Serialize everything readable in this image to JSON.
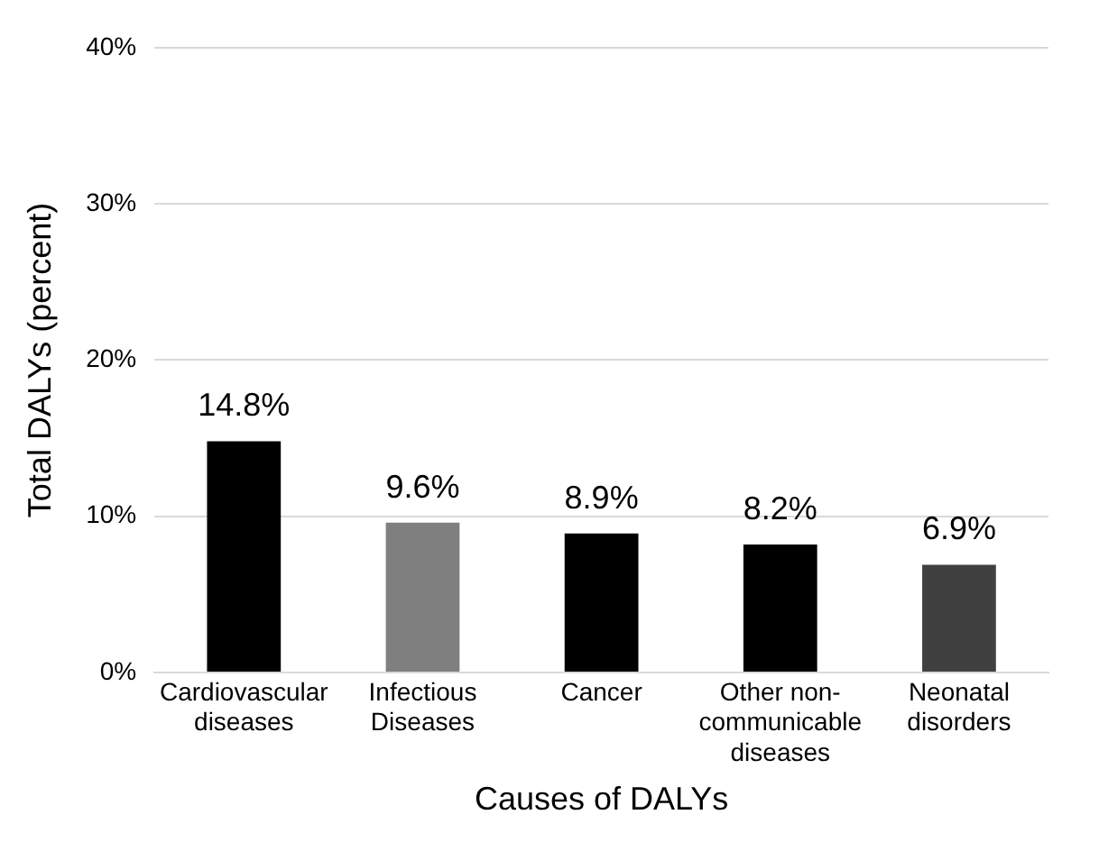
{
  "chart_data": {
    "type": "bar",
    "xlabel": "Causes of DALYs",
    "ylabel": "Total DALYs (percent)",
    "categories": [
      "Cardiovascular diseases",
      "Infectious Diseases",
      "Cancer",
      "Other non-communicable diseases",
      "Neonatal disorders"
    ],
    "values": [
      14.8,
      9.6,
      8.9,
      8.2,
      6.9
    ],
    "colors": [
      "#000000",
      "#7f7f7f",
      "#000000",
      "#000000",
      "#404040"
    ],
    "value_labels": [
      "14.8%",
      "9.6%",
      "8.9%",
      "8.2%",
      "6.9%"
    ],
    "ylim": [
      0,
      40
    ],
    "yticks": [
      {
        "value": 0,
        "label": "0%"
      },
      {
        "value": 10,
        "label": "10%"
      },
      {
        "value": 20,
        "label": "20%"
      },
      {
        "value": 30,
        "label": "30%"
      },
      {
        "value": 40,
        "label": "40%"
      }
    ],
    "grid": "y",
    "legend": false
  }
}
